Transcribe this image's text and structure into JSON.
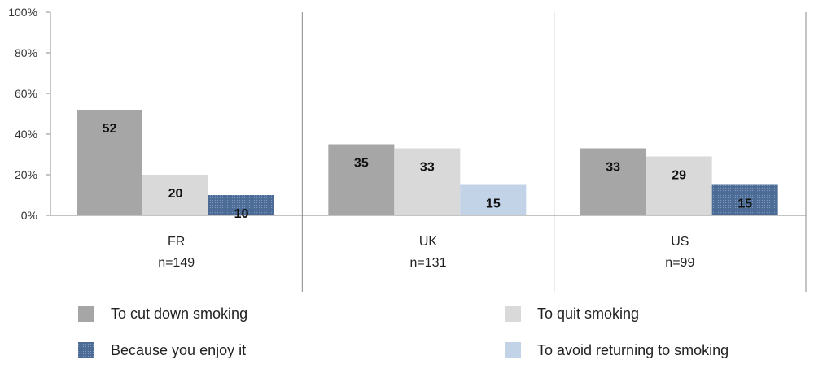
{
  "chart_data": {
    "type": "bar",
    "groups": [
      {
        "label": "FR",
        "sublabel": "n=149",
        "bars": [
          {
            "series": 0,
            "value": 52
          },
          {
            "series": 1,
            "value": 20
          },
          {
            "series": 2,
            "value": 10
          }
        ]
      },
      {
        "label": "UK",
        "sublabel": "n=131",
        "bars": [
          {
            "series": 0,
            "value": 35
          },
          {
            "series": 1,
            "value": 33
          },
          {
            "series": 3,
            "value": 15
          }
        ]
      },
      {
        "label": "US",
        "sublabel": "n=99",
        "bars": [
          {
            "series": 0,
            "value": 33
          },
          {
            "series": 1,
            "value": 29
          },
          {
            "series": 2,
            "value": 15
          }
        ]
      }
    ],
    "series": [
      {
        "name": "To cut down smoking",
        "color": "#a6a6a6",
        "pattern": "solid"
      },
      {
        "name": "To quit smoking",
        "color": "#d9d9d9",
        "pattern": "solid"
      },
      {
        "name": "Because you enjoy it",
        "color": "#4f6f9a",
        "pattern": "dotted"
      },
      {
        "name": "To avoid returning to smoking",
        "color": "#c2d3e8",
        "pattern": "solid"
      }
    ],
    "ylim": [
      0,
      100
    ],
    "yticks": [
      0,
      20,
      40,
      60,
      80,
      100
    ],
    "ytick_labels": [
      "0%",
      "20%",
      "40%",
      "60%",
      "80%",
      "100%"
    ],
    "grid": false,
    "legend_placement": "bottom"
  }
}
